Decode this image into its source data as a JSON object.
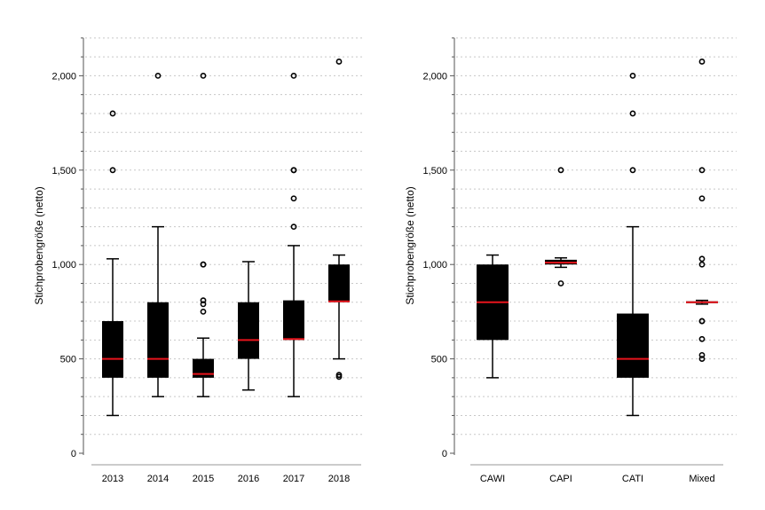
{
  "chart_data": [
    {
      "type": "box",
      "ylabel": "Stichprobengröße (netto)",
      "ylim": [
        0,
        2200
      ],
      "yticks": [
        0,
        500,
        1000,
        1500,
        2000
      ],
      "ytick_labels": [
        "0",
        "500",
        "1,000",
        "1,500",
        "2,000"
      ],
      "grid": "dotted horizontal every 100",
      "categories": [
        "2013",
        "2014",
        "2015",
        "2016",
        "2017",
        "2018"
      ],
      "boxes": [
        {
          "whisker_low": 200,
          "q1": 400,
          "median": 500,
          "q3": 700,
          "whisker_high": 1030,
          "outliers": [
            1500,
            1800
          ]
        },
        {
          "whisker_low": 300,
          "q1": 400,
          "median": 500,
          "q3": 800,
          "whisker_high": 1200,
          "outliers": [
            2000
          ]
        },
        {
          "whisker_low": 300,
          "q1": 400,
          "median": 420,
          "q3": 500,
          "whisker_high": 610,
          "outliers": [
            750,
            790,
            810,
            1000,
            1000,
            2000
          ]
        },
        {
          "whisker_low": 335,
          "q1": 500,
          "median": 600,
          "q3": 800,
          "whisker_high": 1015,
          "outliers": []
        },
        {
          "whisker_low": 300,
          "q1": 600,
          "median": 605,
          "q3": 810,
          "whisker_high": 1100,
          "outliers": [
            1200,
            1350,
            1500,
            1500,
            2000
          ]
        },
        {
          "whisker_low": 500,
          "q1": 800,
          "median": 805,
          "q3": 1000,
          "whisker_high": 1050,
          "outliers": [
            405,
            415,
            2075
          ]
        }
      ]
    },
    {
      "type": "box",
      "ylabel": "Stichprobengröße (netto)",
      "ylim": [
        0,
        2200
      ],
      "yticks": [
        0,
        500,
        1000,
        1500,
        2000
      ],
      "ytick_labels": [
        "0",
        "500",
        "1,000",
        "1,500",
        "2,000"
      ],
      "grid": "dotted horizontal every 100",
      "categories": [
        "CAWI",
        "CAPI",
        "CATI",
        "Mixed"
      ],
      "boxes": [
        {
          "whisker_low": 400,
          "q1": 600,
          "median": 800,
          "q3": 1000,
          "whisker_high": 1050,
          "outliers": []
        },
        {
          "whisker_low": 985,
          "q1": 1000,
          "median": 1010,
          "q3": 1025,
          "whisker_high": 1035,
          "outliers": [
            900,
            1500
          ]
        },
        {
          "whisker_low": 200,
          "q1": 400,
          "median": 500,
          "q3": 740,
          "whisker_high": 1200,
          "outliers": [
            1500,
            1800,
            2000
          ]
        },
        {
          "whisker_low": 790,
          "q1": 795,
          "median": 800,
          "q3": 805,
          "whisker_high": 810,
          "outliers": [
            500,
            520,
            605,
            700,
            700,
            1000,
            1030,
            1350,
            1500,
            2075
          ]
        }
      ]
    }
  ],
  "colors": {
    "box": "#000000",
    "median": "#e8141c",
    "grid": "#c8c8c8",
    "axis": "#555555"
  }
}
